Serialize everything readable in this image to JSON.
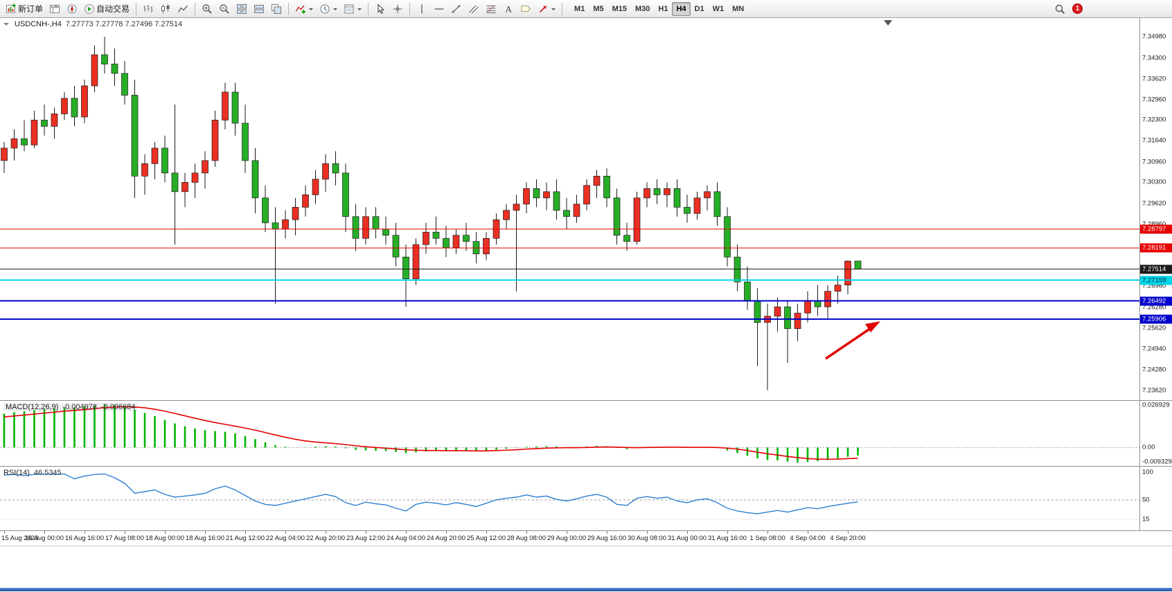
{
  "toolbar": {
    "items": [
      {
        "name": "new-order",
        "icon": "neworder",
        "label": "新订单"
      },
      {
        "name": "market-watch",
        "icon": "marketwatch"
      },
      {
        "name": "navigator",
        "icon": "navigator"
      },
      {
        "name": "auto-trading",
        "icon": "autotrade",
        "label": "自动交易"
      },
      {
        "sep": true
      },
      {
        "name": "bar-chart-mode",
        "icon": "bars"
      },
      {
        "name": "candlestick-mode",
        "icon": "candles"
      },
      {
        "name": "line-chart-mode",
        "icon": "linechart"
      },
      {
        "sep": true
      },
      {
        "name": "zoom-in",
        "icon": "zoomin"
      },
      {
        "name": "zoom-out",
        "icon": "zoomout"
      },
      {
        "name": "tile-windows",
        "icon": "tile"
      },
      {
        "name": "arrange-windows",
        "icon": "arrange"
      },
      {
        "name": "cascade-windows",
        "icon": "cascade"
      },
      {
        "sep": true
      },
      {
        "name": "indicators",
        "icon": "indicators",
        "dropdown": true
      },
      {
        "name": "periods",
        "icon": "periods",
        "dropdown": true
      },
      {
        "name": "templates",
        "icon": "templates",
        "dropdown": true
      },
      {
        "sep": true
      },
      {
        "name": "cursor",
        "icon": "cursor"
      },
      {
        "name": "crosshair",
        "icon": "crosshair"
      },
      {
        "sep": true
      },
      {
        "name": "vertical-line",
        "icon": "vline"
      },
      {
        "name": "horizontal-line",
        "icon": "hline"
      },
      {
        "name": "trendline",
        "icon": "trendline"
      },
      {
        "name": "equidistant-channel",
        "icon": "channel"
      },
      {
        "name": "fibonacci-retracement",
        "icon": "fibo"
      },
      {
        "name": "text",
        "icon": "textA"
      },
      {
        "name": "text-label",
        "icon": "label"
      },
      {
        "name": "arrow-objects",
        "icon": "arrowsIcon",
        "dropdown": true
      },
      {
        "sep": true
      }
    ],
    "timeframes": [
      "M1",
      "M5",
      "M15",
      "M30",
      "H1",
      "H4",
      "D1",
      "W1",
      "MN"
    ],
    "active_timeframe": "H4",
    "right_items": [
      {
        "name": "search",
        "icon": "search"
      }
    ],
    "notification_count": "1"
  },
  "chart": {
    "symbol_period": "USDCNH-,H4",
    "ohlc": "7.27773 7.27778 7.27496 7.27514"
  },
  "price_axis_labels": [
    "7.34980",
    "7.34300",
    "7.33620",
    "7.32960",
    "7.32300",
    "7.31640",
    "7.30960",
    "7.30300",
    "7.29620",
    "7.28960",
    "7.26960",
    "7.26280",
    "7.25620",
    "7.24940",
    "7.24280",
    "7.23620"
  ],
  "levels": [
    {
      "value": "7.28797",
      "color": "#e60000",
      "text_color": "#ffffff",
      "width": 1
    },
    {
      "value": "7.28191",
      "color": "#e60000",
      "text_color": "#ffffff",
      "width": 1
    },
    {
      "value": "7.27514",
      "color": "#1a1a1a",
      "text_color": "#ffffff",
      "width": 1
    },
    {
      "value": "7.27159",
      "color": "#00d4e8",
      "text_color": "#003038",
      "width": 2
    },
    {
      "value": "7.26492",
      "color": "#0000cc",
      "text_color": "#ffffff",
      "width": 2
    },
    {
      "value": "7.25906",
      "color": "#0000cc",
      "text_color": "#ffffff",
      "width": 2
    }
  ],
  "macd": {
    "label": "MACD(12,26,9)",
    "value_main": "-0.004978",
    "value_signal": "-0.006684",
    "axis_labels": [
      "0.026929",
      "0.00",
      "-0.009329"
    ]
  },
  "rsi": {
    "label": "RSI(14)",
    "value": "46.5345",
    "axis_labels": [
      "100",
      "50",
      "15"
    ]
  },
  "time_labels": [
    "15 Aug 2023",
    "16 Aug 00:00",
    "16 Aug 16:00",
    "17 Aug 08:00",
    "18 Aug 00:00",
    "18 Aug 16:00",
    "21 Aug 12:00",
    "22 Aug 04:00",
    "22 Aug 20:00",
    "23 Aug 12:00",
    "24 Aug 04:00",
    "24 Aug 20:00",
    "25 Aug 12:00",
    "28 Aug 08:00",
    "29 Aug 00:00",
    "29 Aug 16:00",
    "30 Aug 08:00",
    "31 Aug 00:00",
    "31 Aug 16:00",
    "1 Sep 08:00",
    "4 Sep 04:00",
    "4 Sep 20:00"
  ],
  "annotation": {
    "type": "arrow",
    "color": "#e00000",
    "direction": "up-right"
  },
  "chart_data": {
    "type": "candlestick",
    "symbol": "USDCNH-",
    "timeframe": "H4",
    "price_range": [
      7.233,
      7.3558
    ],
    "up_color": "#ea2f23",
    "down_color": "#27ae27",
    "candles": [
      [
        7.31,
        7.316,
        7.306,
        7.314
      ],
      [
        7.314,
        7.32,
        7.31,
        7.317
      ],
      [
        7.317,
        7.323,
        7.313,
        7.315
      ],
      [
        7.315,
        7.326,
        7.314,
        7.323
      ],
      [
        7.323,
        7.328,
        7.318,
        7.321
      ],
      [
        7.321,
        7.327,
        7.317,
        7.325
      ],
      [
        7.325,
        7.332,
        7.323,
        7.33
      ],
      [
        7.33,
        7.334,
        7.321,
        7.324
      ],
      [
        7.324,
        7.336,
        7.322,
        7.334
      ],
      [
        7.334,
        7.347,
        7.332,
        7.344
      ],
      [
        7.344,
        7.3498,
        7.338,
        7.341
      ],
      [
        7.341,
        7.346,
        7.334,
        7.338
      ],
      [
        7.338,
        7.342,
        7.328,
        7.331
      ],
      [
        7.331,
        7.336,
        7.298,
        7.305
      ],
      [
        7.305,
        7.312,
        7.299,
        7.309
      ],
      [
        7.309,
        7.316,
        7.304,
        7.314
      ],
      [
        7.314,
        7.318,
        7.303,
        7.306
      ],
      [
        7.306,
        7.328,
        7.283,
        7.3
      ],
      [
        7.3,
        7.306,
        7.295,
        7.303
      ],
      [
        7.303,
        7.309,
        7.298,
        7.306
      ],
      [
        7.306,
        7.313,
        7.301,
        7.31
      ],
      [
        7.31,
        7.326,
        7.308,
        7.323
      ],
      [
        7.323,
        7.335,
        7.32,
        7.332
      ],
      [
        7.332,
        7.335,
        7.318,
        7.322
      ],
      [
        7.322,
        7.328,
        7.306,
        7.31
      ],
      [
        7.31,
        7.314,
        7.293,
        7.298
      ],
      [
        7.298,
        7.302,
        7.287,
        7.29
      ],
      [
        7.29,
        7.295,
        7.264,
        7.288
      ],
      [
        7.288,
        7.294,
        7.285,
        7.291
      ],
      [
        7.291,
        7.298,
        7.286,
        7.295
      ],
      [
        7.295,
        7.302,
        7.292,
        7.299
      ],
      [
        7.299,
        7.307,
        7.296,
        7.304
      ],
      [
        7.304,
        7.312,
        7.3,
        7.309
      ],
      [
        7.309,
        7.313,
        7.302,
        7.306
      ],
      [
        7.306,
        7.309,
        7.287,
        7.292
      ],
      [
        7.292,
        7.296,
        7.281,
        7.285
      ],
      [
        7.285,
        7.295,
        7.283,
        7.292
      ],
      [
        7.292,
        7.295,
        7.285,
        7.288
      ],
      [
        7.288,
        7.292,
        7.283,
        7.286
      ],
      [
        7.286,
        7.29,
        7.276,
        7.279
      ],
      [
        7.279,
        7.283,
        7.263,
        7.272
      ],
      [
        7.272,
        7.285,
        7.27,
        7.283
      ],
      [
        7.283,
        7.29,
        7.28,
        7.287
      ],
      [
        7.287,
        7.292,
        7.283,
        7.285
      ],
      [
        7.285,
        7.289,
        7.279,
        7.282
      ],
      [
        7.282,
        7.288,
        7.28,
        7.286
      ],
      [
        7.286,
        7.29,
        7.281,
        7.284
      ],
      [
        7.284,
        7.287,
        7.277,
        7.28
      ],
      [
        7.28,
        7.287,
        7.278,
        7.285
      ],
      [
        7.285,
        7.293,
        7.283,
        7.291
      ],
      [
        7.291,
        7.296,
        7.288,
        7.294
      ],
      [
        7.294,
        7.299,
        7.268,
        7.296
      ],
      [
        7.296,
        7.303,
        7.293,
        7.301
      ],
      [
        7.301,
        7.304,
        7.295,
        7.298
      ],
      [
        7.298,
        7.303,
        7.294,
        7.3
      ],
      [
        7.3,
        7.304,
        7.291,
        7.294
      ],
      [
        7.294,
        7.298,
        7.288,
        7.292
      ],
      [
        7.292,
        7.299,
        7.29,
        7.296
      ],
      [
        7.296,
        7.304,
        7.294,
        7.302
      ],
      [
        7.302,
        7.307,
        7.298,
        7.305
      ],
      [
        7.305,
        7.3075,
        7.295,
        7.298
      ],
      [
        7.298,
        7.301,
        7.283,
        7.286
      ],
      [
        7.286,
        7.29,
        7.281,
        7.284
      ],
      [
        7.284,
        7.3,
        7.283,
        7.298
      ],
      [
        7.298,
        7.303,
        7.295,
        7.301
      ],
      [
        7.301,
        7.304,
        7.296,
        7.299
      ],
      [
        7.299,
        7.303,
        7.295,
        7.301
      ],
      [
        7.301,
        7.304,
        7.292,
        7.295
      ],
      [
        7.295,
        7.299,
        7.29,
        7.293
      ],
      [
        7.293,
        7.3,
        7.291,
        7.298
      ],
      [
        7.298,
        7.302,
        7.294,
        7.3
      ],
      [
        7.3,
        7.303,
        7.289,
        7.292
      ],
      [
        7.292,
        7.295,
        7.276,
        7.279
      ],
      [
        7.279,
        7.283,
        7.268,
        7.271
      ],
      [
        7.271,
        7.276,
        7.262,
        7.265
      ],
      [
        7.265,
        7.269,
        7.244,
        7.258
      ],
      [
        7.258,
        7.264,
        7.2362,
        7.26
      ],
      [
        7.26,
        7.266,
        7.255,
        7.263
      ],
      [
        7.263,
        7.265,
        7.245,
        7.256
      ],
      [
        7.256,
        7.264,
        7.252,
        7.261
      ],
      [
        7.261,
        7.268,
        7.258,
        7.265
      ],
      [
        7.265,
        7.27,
        7.26,
        7.263
      ],
      [
        7.263,
        7.27,
        7.259,
        7.268
      ],
      [
        7.268,
        7.273,
        7.264,
        7.27
      ],
      [
        7.27,
        7.278,
        7.267,
        7.2777
      ],
      [
        7.27773,
        7.27778,
        7.27496,
        7.27514
      ]
    ],
    "indicators": {
      "macd": {
        "range": [
          -0.0115,
          0.029
        ],
        "histogram_color": "#00b400",
        "signal_color": "#e60000",
        "histogram": [
          0.021,
          0.022,
          0.0225,
          0.0232,
          0.0238,
          0.0242,
          0.0248,
          0.025,
          0.0255,
          0.0262,
          0.0269,
          0.0265,
          0.0255,
          0.0235,
          0.0215,
          0.0195,
          0.0172,
          0.015,
          0.0132,
          0.0118,
          0.0108,
          0.0102,
          0.0098,
          0.0088,
          0.0072,
          0.0052,
          0.0032,
          0.0015,
          0.0005,
          0.0,
          0.0002,
          0.0005,
          0.0008,
          0.0006,
          -0.0005,
          -0.0015,
          -0.0018,
          -0.002,
          -0.0022,
          -0.0028,
          -0.0035,
          -0.003,
          -0.0024,
          -0.0022,
          -0.0022,
          -0.002,
          -0.002,
          -0.0024,
          -0.002,
          -0.0014,
          -0.0008,
          -0.0002,
          0.0004,
          0.0006,
          0.0008,
          0.0006,
          0.0002,
          0.0002,
          0.0006,
          0.001,
          0.0008,
          -0.0002,
          -0.001,
          -0.0004,
          0.0002,
          0.0004,
          0.0006,
          0.0002,
          -0.0002,
          0.0,
          0.0002,
          -0.0004,
          -0.0018,
          -0.0035,
          -0.0052,
          -0.0068,
          -0.0078,
          -0.008,
          -0.0088,
          -0.0093,
          -0.009,
          -0.0085,
          -0.0078,
          -0.0068,
          -0.0058,
          -0.005
        ],
        "signal": [
          0.019,
          0.0196,
          0.0202,
          0.0208,
          0.0214,
          0.022,
          0.0226,
          0.0231,
          0.0236,
          0.0242,
          0.0248,
          0.0252,
          0.0254,
          0.0252,
          0.0247,
          0.0238,
          0.0226,
          0.0212,
          0.0197,
          0.0182,
          0.0168,
          0.0155,
          0.0144,
          0.0133,
          0.0121,
          0.0108,
          0.0093,
          0.0078,
          0.0064,
          0.0051,
          0.0041,
          0.0034,
          0.0029,
          0.0024,
          0.0018,
          0.0011,
          0.0005,
          0.0,
          -0.0004,
          -0.0009,
          -0.0014,
          -0.0017,
          -0.0019,
          -0.0019,
          -0.002,
          -0.002,
          -0.002,
          -0.0021,
          -0.0021,
          -0.0019,
          -0.0017,
          -0.0014,
          -0.001,
          -0.0007,
          -0.0004,
          -0.0002,
          -0.0001,
          -0.0001,
          0.0,
          0.0002,
          0.0003,
          0.0002,
          0.0,
          -0.0001,
          0.0,
          0.0001,
          0.0002,
          0.0002,
          0.0001,
          0.0001,
          0.0001,
          0.0,
          -0.0004,
          -0.001,
          -0.0019,
          -0.0029,
          -0.0039,
          -0.0047,
          -0.0056,
          -0.0063,
          -0.0069,
          -0.0072,
          -0.0073,
          -0.0072,
          -0.0069,
          -0.0067
        ]
      },
      "rsi": {
        "range": [
          -5,
          110
        ],
        "color": "#2f7fd0",
        "values": [
          95,
          96,
          94,
          96,
          97,
          96,
          97,
          88,
          93,
          96,
          97,
          90,
          80,
          62,
          65,
          68,
          60,
          55,
          57,
          59,
          62,
          70,
          75,
          68,
          58,
          48,
          42,
          40,
          44,
          48,
          52,
          56,
          60,
          56,
          45,
          40,
          46,
          43,
          41,
          35,
          30,
          42,
          46,
          44,
          41,
          45,
          42,
          38,
          44,
          50,
          53,
          55,
          59,
          55,
          57,
          51,
          48,
          52,
          57,
          60,
          55,
          42,
          40,
          53,
          56,
          53,
          55,
          48,
          45,
          50,
          52,
          45,
          35,
          30,
          27,
          25,
          28,
          31,
          28,
          32,
          36,
          34,
          38,
          41,
          44,
          46.5
        ]
      }
    }
  }
}
